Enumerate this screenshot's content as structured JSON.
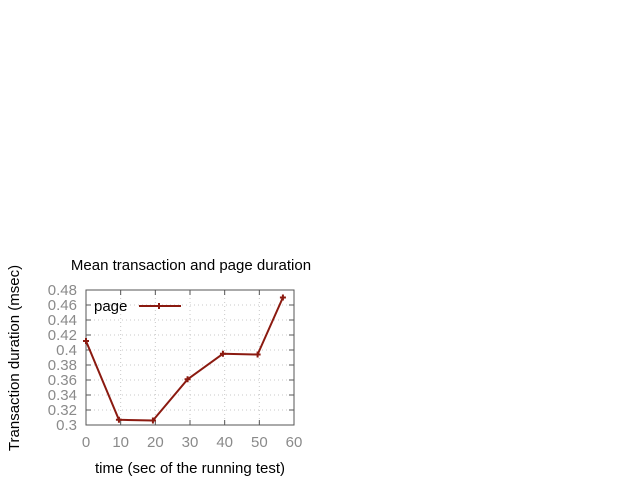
{
  "chart_data": {
    "type": "line",
    "title": "Mean transaction and page duration",
    "xlabel": "time (sec of the running test)",
    "ylabel": "Transaction duration (msec)",
    "xlim": [
      0,
      60
    ],
    "ylim": [
      0.3,
      0.48
    ],
    "xticks": [
      "0",
      "10",
      "20",
      "30",
      "40",
      "50",
      "60"
    ],
    "yticks": [
      "0.3",
      "0.32",
      "0.34",
      "0.36",
      "0.38",
      "0.4",
      "0.42",
      "0.44",
      "0.46",
      "0.48"
    ],
    "grid": true,
    "legend_position": "top-left",
    "series": [
      {
        "name": "page",
        "color": "#8b1a10",
        "x": [
          0,
          9.5,
          19.3,
          29.3,
          39.5,
          49.5,
          56.8
        ],
        "y": [
          0.412,
          0.307,
          0.306,
          0.361,
          0.395,
          0.394,
          0.47
        ]
      }
    ]
  }
}
